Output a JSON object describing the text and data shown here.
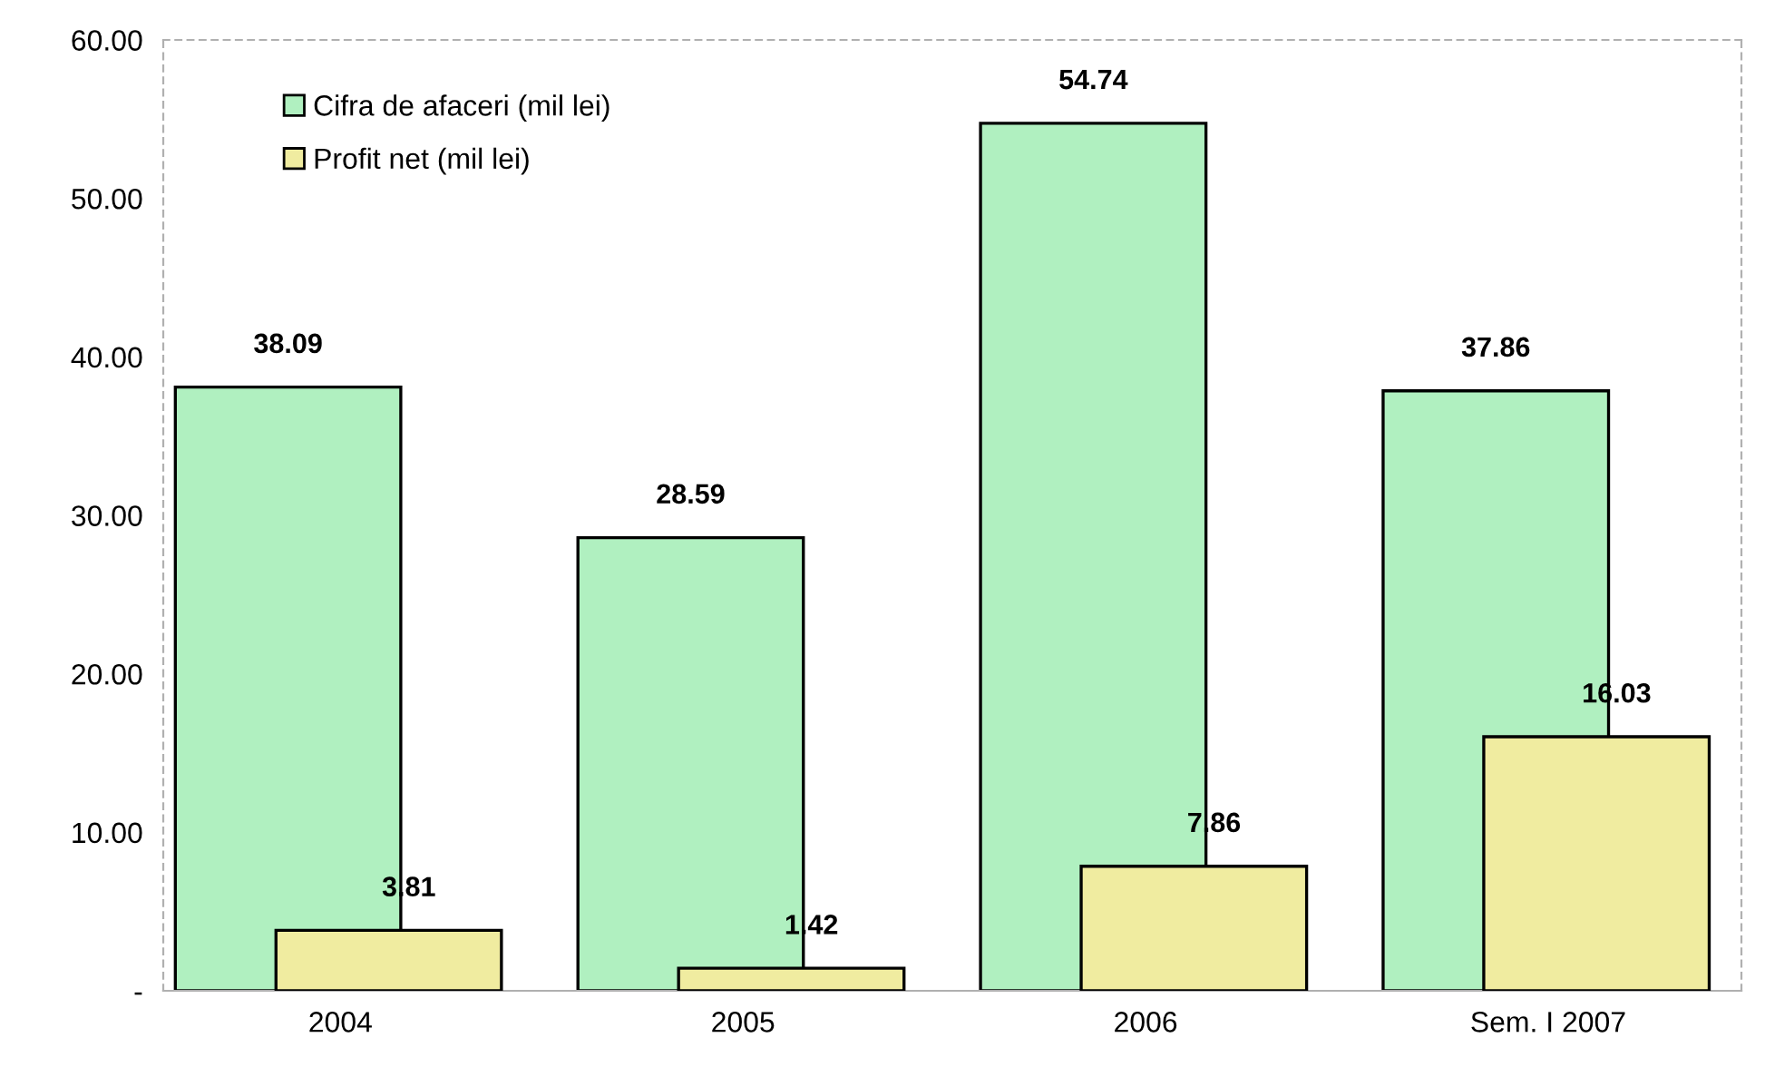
{
  "chart_data": {
    "type": "bar",
    "categories": [
      "2004",
      "2005",
      "2006",
      "Sem. I 2007"
    ],
    "series": [
      {
        "name": "Cifra de afaceri (mil lei)",
        "color": "#b0f0c0",
        "values": [
          38.09,
          28.59,
          54.74,
          37.86
        ]
      },
      {
        "name": "Profit net (mil lei)",
        "color": "#f0eca0",
        "values": [
          3.81,
          1.42,
          7.86,
          16.03
        ]
      }
    ],
    "ylim": [
      0,
      60
    ],
    "yticks": [
      {
        "value": 0,
        "label": "-"
      },
      {
        "value": 10,
        "label": "10.00"
      },
      {
        "value": 20,
        "label": "20.00"
      },
      {
        "value": 30,
        "label": "30.00"
      },
      {
        "value": 40,
        "label": "40.00"
      },
      {
        "value": 50,
        "label": "50.00"
      },
      {
        "value": 60,
        "label": "60.00"
      }
    ],
    "data_labels": true,
    "legend": "top left",
    "grid": false
  }
}
